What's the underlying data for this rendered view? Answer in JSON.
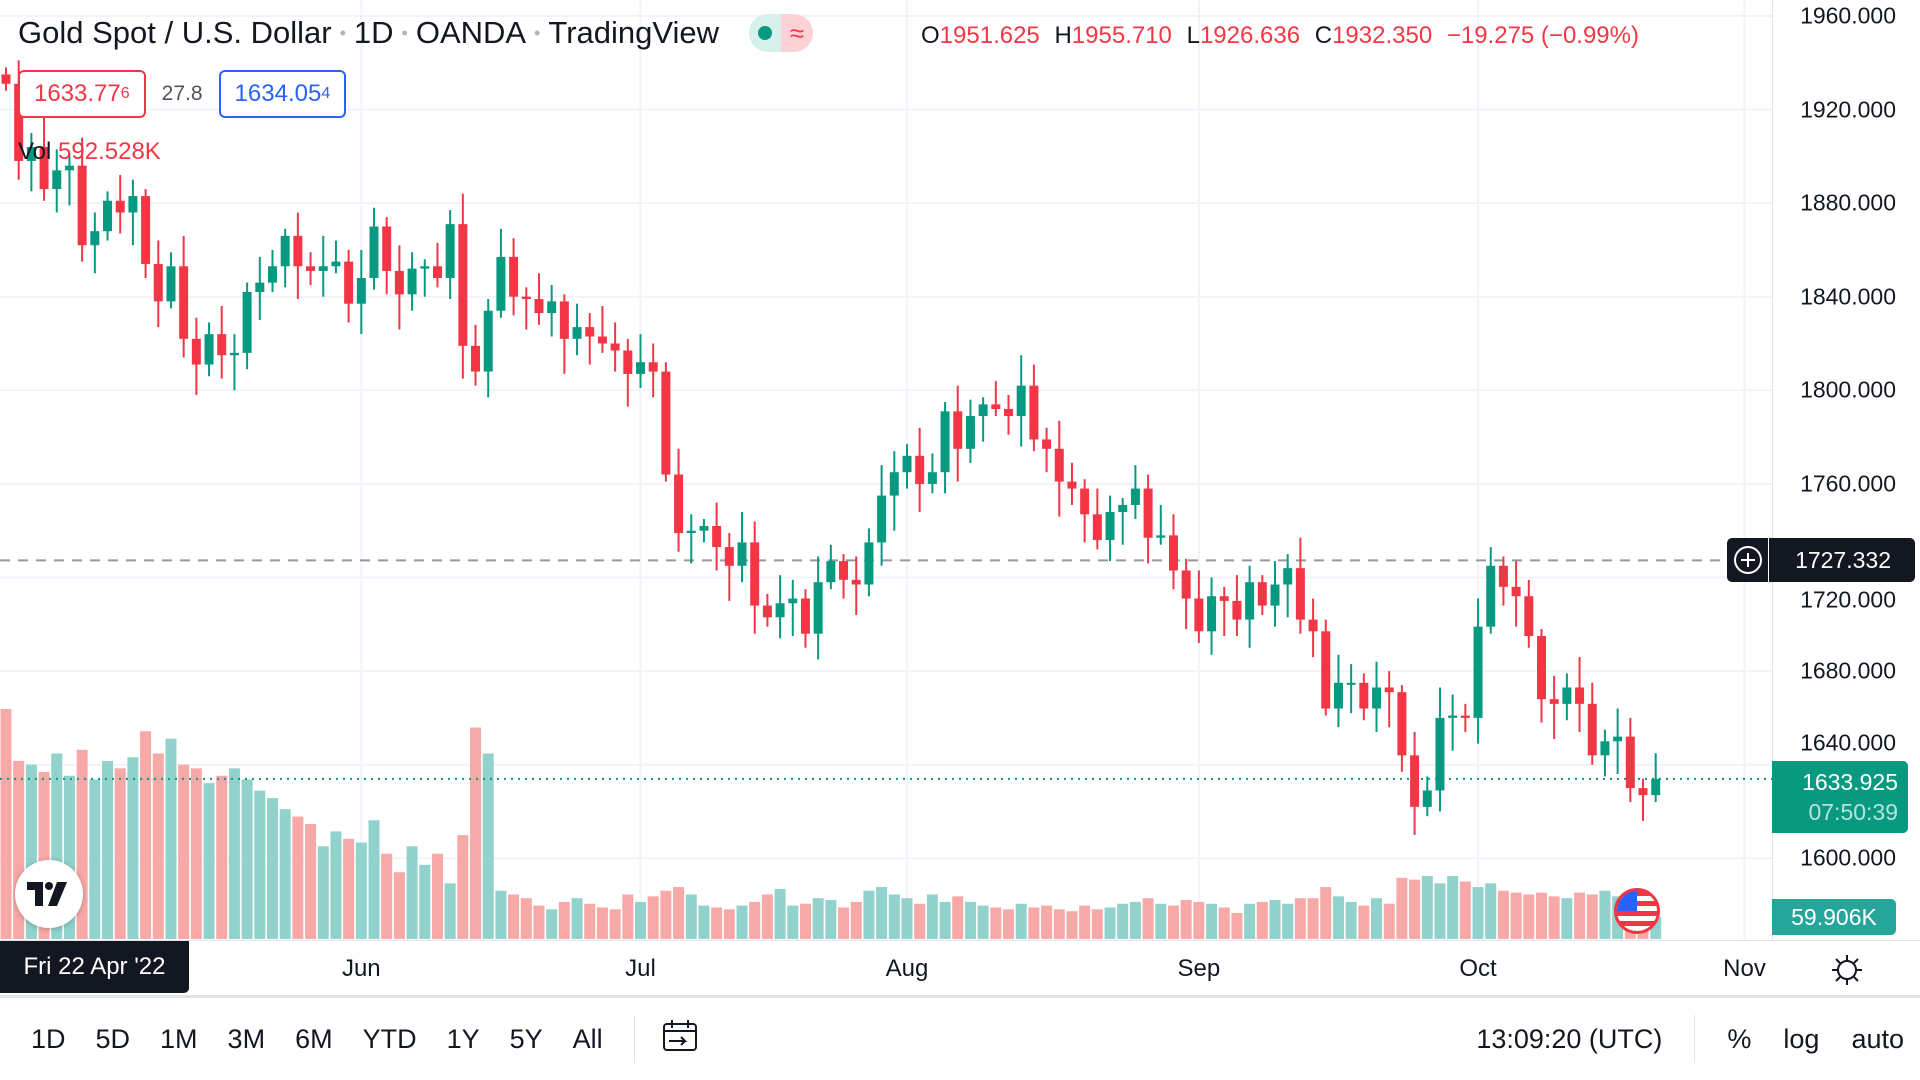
{
  "header": {
    "title": "Gold Spot / U.S. Dollar",
    "interval": "1D",
    "source": "OANDA",
    "platform": "TradingView",
    "ohlc": {
      "o_label": "O",
      "o": "1951.625",
      "h_label": "H",
      "h": "1955.710",
      "l_label": "L",
      "l": "1926.636",
      "c_label": "C",
      "c": "1932.350",
      "change": "−19.275 (−0.99%)"
    },
    "status_icons": [
      "market-open-dot-icon",
      "delayed-data-icon"
    ]
  },
  "quote": {
    "sell": "1633.77",
    "sell_sup": "6",
    "spread": "27.8",
    "buy": "1634.05",
    "buy_sup": "4"
  },
  "volume_legend": {
    "label": "Vol",
    "value": "592.528K"
  },
  "price_axis": {
    "labels": [
      "1960.000",
      "1920.000",
      "1880.000",
      "1840.000",
      "1800.000",
      "1760.000",
      "1720.000",
      "1680.000",
      "1640.000",
      "1600.000"
    ],
    "crosshair_price": "1727.332",
    "last_price": "1633.925",
    "countdown": "07:50:39",
    "last_volume": "59.906K"
  },
  "time_axis": {
    "crosshair_date": "Fri 22 Apr '22",
    "labels": [
      {
        "text": "Jun",
        "index": 28
      },
      {
        "text": "Jul",
        "index": 50
      },
      {
        "text": "Aug",
        "index": 71
      },
      {
        "text": "Sep",
        "index": 94
      },
      {
        "text": "Oct",
        "index": 116
      },
      {
        "text": "Nov",
        "index": 137
      }
    ]
  },
  "bottom_bar": {
    "ranges": [
      "1D",
      "5D",
      "1M",
      "3M",
      "6M",
      "YTD",
      "1Y",
      "5Y",
      "All"
    ],
    "clock": "13:09:20 (UTC)",
    "percent": "%",
    "log": "log",
    "auto": "auto"
  },
  "colors": {
    "up": "#089981",
    "down": "#f23645",
    "vol_up": "#92d2cc",
    "vol_down": "#f7a9a7"
  },
  "chart_data": {
    "type": "candlestick",
    "ylim": [
      1580,
      1967
    ],
    "first_open": 1935,
    "close": [
      1931,
      1898,
      1904,
      1886,
      1894,
      1896,
      1862,
      1868,
      1881,
      1876,
      1883,
      1854,
      1838,
      1853,
      1822,
      1811,
      1824,
      1815,
      1816,
      1842,
      1846,
      1853,
      1866,
      1853,
      1851,
      1853,
      1855,
      1837,
      1848,
      1870,
      1851,
      1841,
      1852,
      1853,
      1848,
      1871,
      1819,
      1808,
      1834,
      1857,
      1840,
      1839,
      1833,
      1838,
      1822,
      1827,
      1823,
      1820,
      1817,
      1807,
      1812,
      1808,
      1764,
      1739,
      1740,
      1742,
      1733,
      1725,
      1735,
      1708,
      1703,
      1709,
      1711,
      1696,
      1718,
      1727,
      1719,
      1717,
      1735,
      1755,
      1765,
      1772,
      1760,
      1765,
      1791,
      1775,
      1789,
      1794,
      1792,
      1789,
      1802,
      1779,
      1775,
      1761,
      1758,
      1747,
      1736,
      1748,
      1751,
      1758,
      1737,
      1738,
      1723,
      1711,
      1697,
      1712,
      1710,
      1702,
      1718,
      1708,
      1717,
      1724,
      1702,
      1697,
      1664,
      1675,
      1675,
      1664,
      1673,
      1671,
      1644,
      1622,
      1629,
      1660,
      1661,
      1660,
      1699,
      1725,
      1716,
      1712,
      1695,
      1668,
      1666,
      1673,
      1666,
      1644,
      1650,
      1652,
      1630,
      1627,
      1633.925
    ],
    "volume_k": [
      620,
      480,
      470,
      450,
      500,
      440,
      510,
      430,
      480,
      460,
      490,
      560,
      500,
      540,
      470,
      460,
      420,
      440,
      460,
      430,
      400,
      380,
      350,
      330,
      310,
      250,
      290,
      270,
      260,
      320,
      230,
      180,
      250,
      200,
      230,
      150,
      280,
      570,
      500,
      130,
      120,
      110,
      90,
      80,
      100,
      110,
      95,
      85,
      80,
      120,
      100,
      115,
      130,
      140,
      120,
      90,
      85,
      80,
      90,
      100,
      120,
      135,
      90,
      95,
      110,
      105,
      85,
      100,
      130,
      140,
      120,
      110,
      95,
      120,
      100,
      115,
      100,
      90,
      85,
      80,
      95,
      85,
      90,
      80,
      75,
      90,
      80,
      85,
      95,
      100,
      110,
      95,
      90,
      105,
      100,
      95,
      85,
      70,
      95,
      100,
      105,
      95,
      110,
      110,
      140,
      115,
      100,
      90,
      110,
      95,
      165,
      160,
      170,
      150,
      170,
      155,
      140,
      150,
      130,
      125,
      120,
      125,
      115,
      110,
      125,
      120,
      130,
      115,
      120,
      110,
      60
    ]
  }
}
